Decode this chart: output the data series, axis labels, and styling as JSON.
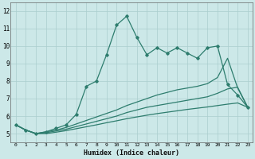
{
  "x": [
    0,
    1,
    2,
    3,
    4,
    5,
    6,
    7,
    8,
    9,
    10,
    11,
    12,
    13,
    14,
    15,
    16,
    17,
    18,
    19,
    20,
    21,
    22,
    23
  ],
  "line1": [
    5.5,
    5.2,
    5.0,
    5.1,
    5.3,
    5.5,
    6.1,
    7.7,
    8.0,
    9.5,
    11.2,
    11.7,
    10.5,
    9.5,
    9.9,
    9.6,
    9.9,
    9.6,
    9.3,
    9.9,
    10.0,
    7.8,
    7.2,
    6.5
  ],
  "line2": [
    5.5,
    5.2,
    5.0,
    5.1,
    5.2,
    5.35,
    5.55,
    5.75,
    5.95,
    6.15,
    6.35,
    6.6,
    6.8,
    7.0,
    7.2,
    7.35,
    7.5,
    7.6,
    7.7,
    7.85,
    8.2,
    9.3,
    7.6,
    6.5
  ],
  "line3": [
    5.5,
    5.2,
    5.0,
    5.05,
    5.15,
    5.25,
    5.4,
    5.55,
    5.7,
    5.85,
    6.0,
    6.2,
    6.35,
    6.5,
    6.6,
    6.7,
    6.8,
    6.9,
    7.0,
    7.1,
    7.3,
    7.55,
    7.65,
    6.5
  ],
  "line4": [
    5.5,
    5.2,
    5.0,
    5.0,
    5.08,
    5.17,
    5.28,
    5.39,
    5.5,
    5.62,
    5.73,
    5.85,
    5.95,
    6.05,
    6.14,
    6.22,
    6.3,
    6.38,
    6.45,
    6.52,
    6.6,
    6.68,
    6.75,
    6.5
  ],
  "color": "#2e7d6e",
  "bg_color": "#cce8e8",
  "grid_color": "#aacece",
  "xlabel": "Humidex (Indice chaleur)",
  "ylim": [
    4.5,
    12.5
  ],
  "xlim": [
    -0.5,
    23.5
  ],
  "yticks": [
    5,
    6,
    7,
    8,
    9,
    10,
    11,
    12
  ],
  "xticks": [
    0,
    1,
    2,
    3,
    4,
    5,
    6,
    7,
    8,
    9,
    10,
    11,
    12,
    13,
    14,
    15,
    16,
    17,
    18,
    19,
    20,
    21,
    22,
    23
  ]
}
